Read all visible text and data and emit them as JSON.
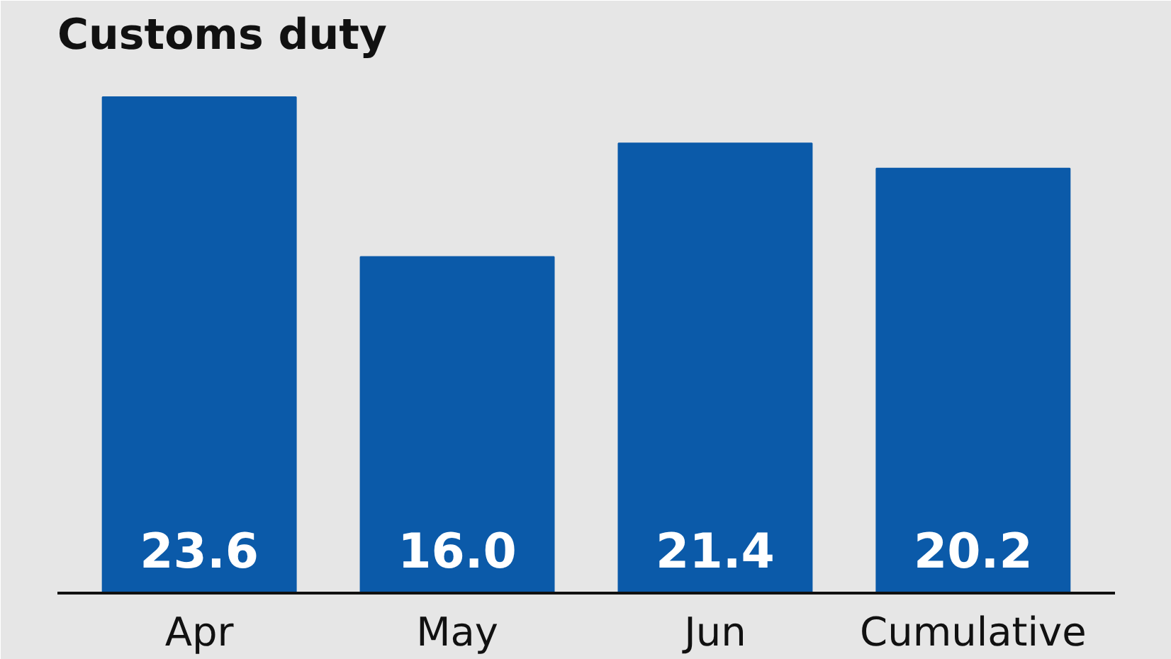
{
  "chart_data": {
    "type": "bar",
    "title": "Customs duty",
    "categories": [
      "Apr",
      "May",
      "Jun",
      "Cumulative"
    ],
    "values": [
      23.6,
      16.0,
      21.4,
      20.2
    ],
    "value_labels": [
      "23.6",
      "16.0",
      "21.4",
      "20.2"
    ],
    "color": "#0b5aa9"
  }
}
